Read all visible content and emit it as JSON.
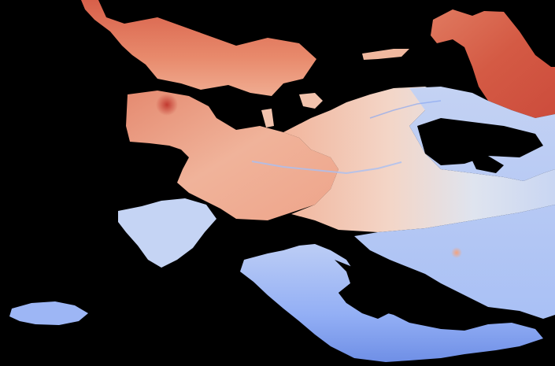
{
  "map": {
    "kind": "land surface temperature anomaly raster",
    "projection": "equirectangular",
    "background_color": "#000000",
    "colormap": {
      "name": "coolwarm",
      "stops": [
        "#3b4cc0",
        "#7b9ff9",
        "#c0d4f5",
        "#f2cbb7",
        "#ee8468",
        "#b40426"
      ]
    },
    "regions": [
      {
        "name": "north-west-warm-landmass",
        "level": 0.85
      },
      {
        "name": "north-east-warm-landmass",
        "level": 0.86
      },
      {
        "name": "western-warm-peninsula",
        "level": 0.78
      },
      {
        "name": "central-transition-band",
        "level": 0.52
      },
      {
        "name": "eastern-cool-plain",
        "level": 0.3
      },
      {
        "name": "southern-cool-coast",
        "level": 0.2
      },
      {
        "name": "south-west-island",
        "level": 0.24
      }
    ],
    "features": {
      "warm_hotspot": "red-dot-west",
      "small_anomaly": "orange-dot-east"
    }
  }
}
